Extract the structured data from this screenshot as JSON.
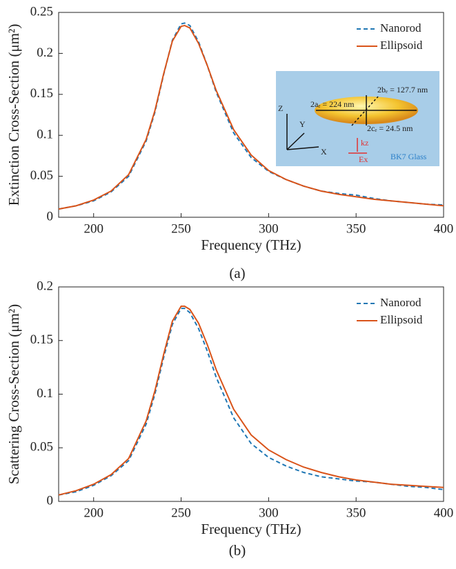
{
  "chart_data": [
    {
      "type": "line",
      "caption": "(a)",
      "xlabel": "Frequency (THz)",
      "ylabel": "Extinction Cross-Section (μm²)",
      "x": [
        180,
        190,
        200,
        210,
        220,
        230,
        235,
        240,
        245,
        250,
        252,
        255,
        260,
        265,
        270,
        280,
        290,
        300,
        310,
        320,
        330,
        340,
        350,
        360,
        370,
        380,
        390,
        400
      ],
      "series": [
        {
          "name": "Nanorod",
          "color": "#1f77b4",
          "line_style": "dashed",
          "values": [
            0.01,
            0.014,
            0.02,
            0.031,
            0.05,
            0.093,
            0.128,
            0.174,
            0.216,
            0.236,
            0.237,
            0.234,
            0.214,
            0.185,
            0.153,
            0.103,
            0.073,
            0.056,
            0.046,
            0.038,
            0.032,
            0.029,
            0.027,
            0.023,
            0.02,
            0.018,
            0.016,
            0.015
          ]
        },
        {
          "name": "Ellipsoid",
          "color": "#d95319",
          "line_style": "solid",
          "values": [
            0.01,
            0.014,
            0.021,
            0.032,
            0.052,
            0.095,
            0.13,
            0.175,
            0.215,
            0.233,
            0.234,
            0.231,
            0.212,
            0.185,
            0.155,
            0.107,
            0.076,
            0.057,
            0.046,
            0.038,
            0.032,
            0.028,
            0.025,
            0.022,
            0.02,
            0.018,
            0.016,
            0.014
          ]
        }
      ],
      "xlim": [
        180,
        400
      ],
      "xticks": [
        200,
        250,
        300,
        350,
        400
      ],
      "ylim": [
        0,
        0.25
      ],
      "yticks": [
        0,
        0.05,
        0.1,
        0.15,
        0.2,
        0.25
      ],
      "legend": "upper right",
      "inset": {
        "z": "Z",
        "y": "Y",
        "x": "X",
        "a": "2aₑ = 224 nm",
        "b": "2bₑ = 127.7 nm",
        "c": "2cₑ = 24.5 nm",
        "k": "kz",
        "e": "Ex",
        "glass": "BK7 Glass"
      }
    },
    {
      "type": "line",
      "caption": "(b)",
      "xlabel": "Frequency (THz)",
      "ylabel": "Scattering Cross-Section (μm²)",
      "x": [
        180,
        190,
        200,
        210,
        220,
        230,
        235,
        240,
        245,
        250,
        252,
        255,
        260,
        265,
        270,
        280,
        290,
        300,
        310,
        320,
        330,
        340,
        350,
        360,
        370,
        380,
        390,
        400
      ],
      "series": [
        {
          "name": "Nanorod",
          "color": "#1f77b4",
          "line_style": "dashed",
          "values": [
            0.006,
            0.009,
            0.015,
            0.024,
            0.038,
            0.072,
            0.1,
            0.134,
            0.165,
            0.18,
            0.18,
            0.176,
            0.161,
            0.14,
            0.116,
            0.078,
            0.054,
            0.041,
            0.033,
            0.027,
            0.023,
            0.021,
            0.019,
            0.018,
            0.016,
            0.014,
            0.013,
            0.011
          ]
        },
        {
          "name": "Ellipsoid",
          "color": "#d95319",
          "line_style": "solid",
          "values": [
            0.006,
            0.01,
            0.016,
            0.025,
            0.04,
            0.075,
            0.103,
            0.137,
            0.168,
            0.182,
            0.182,
            0.179,
            0.166,
            0.146,
            0.123,
            0.086,
            0.062,
            0.048,
            0.039,
            0.032,
            0.027,
            0.023,
            0.02,
            0.018,
            0.016,
            0.015,
            0.014,
            0.013
          ]
        }
      ],
      "xlim": [
        180,
        400
      ],
      "xticks": [
        200,
        250,
        300,
        350,
        400
      ],
      "ylim": [
        0,
        0.2
      ],
      "yticks": [
        0,
        0.05,
        0.1,
        0.15,
        0.2
      ],
      "legend": "upper right"
    }
  ]
}
